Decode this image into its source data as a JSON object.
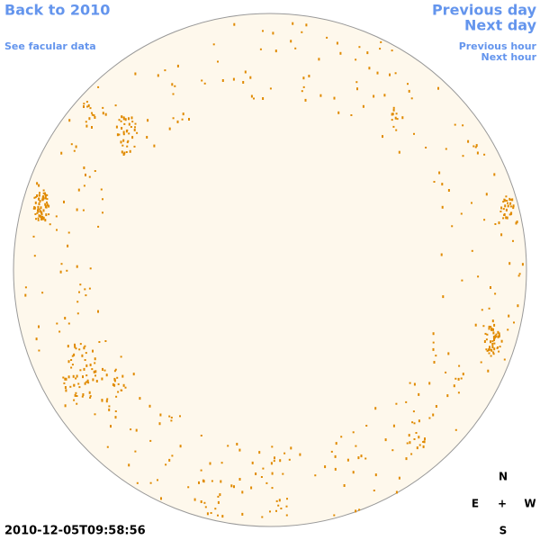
{
  "links": {
    "back": "Back to 2010",
    "facular": "See facular data",
    "previous_day": "Previous day",
    "next_day": "Next day",
    "previous_hour": "Previous hour",
    "next_hour": "Next hour"
  },
  "compass": {
    "north": "N",
    "east": "E",
    "center": "+",
    "west": "W",
    "south": "S"
  },
  "timestamp": "2010-12-05T09:58:56"
}
